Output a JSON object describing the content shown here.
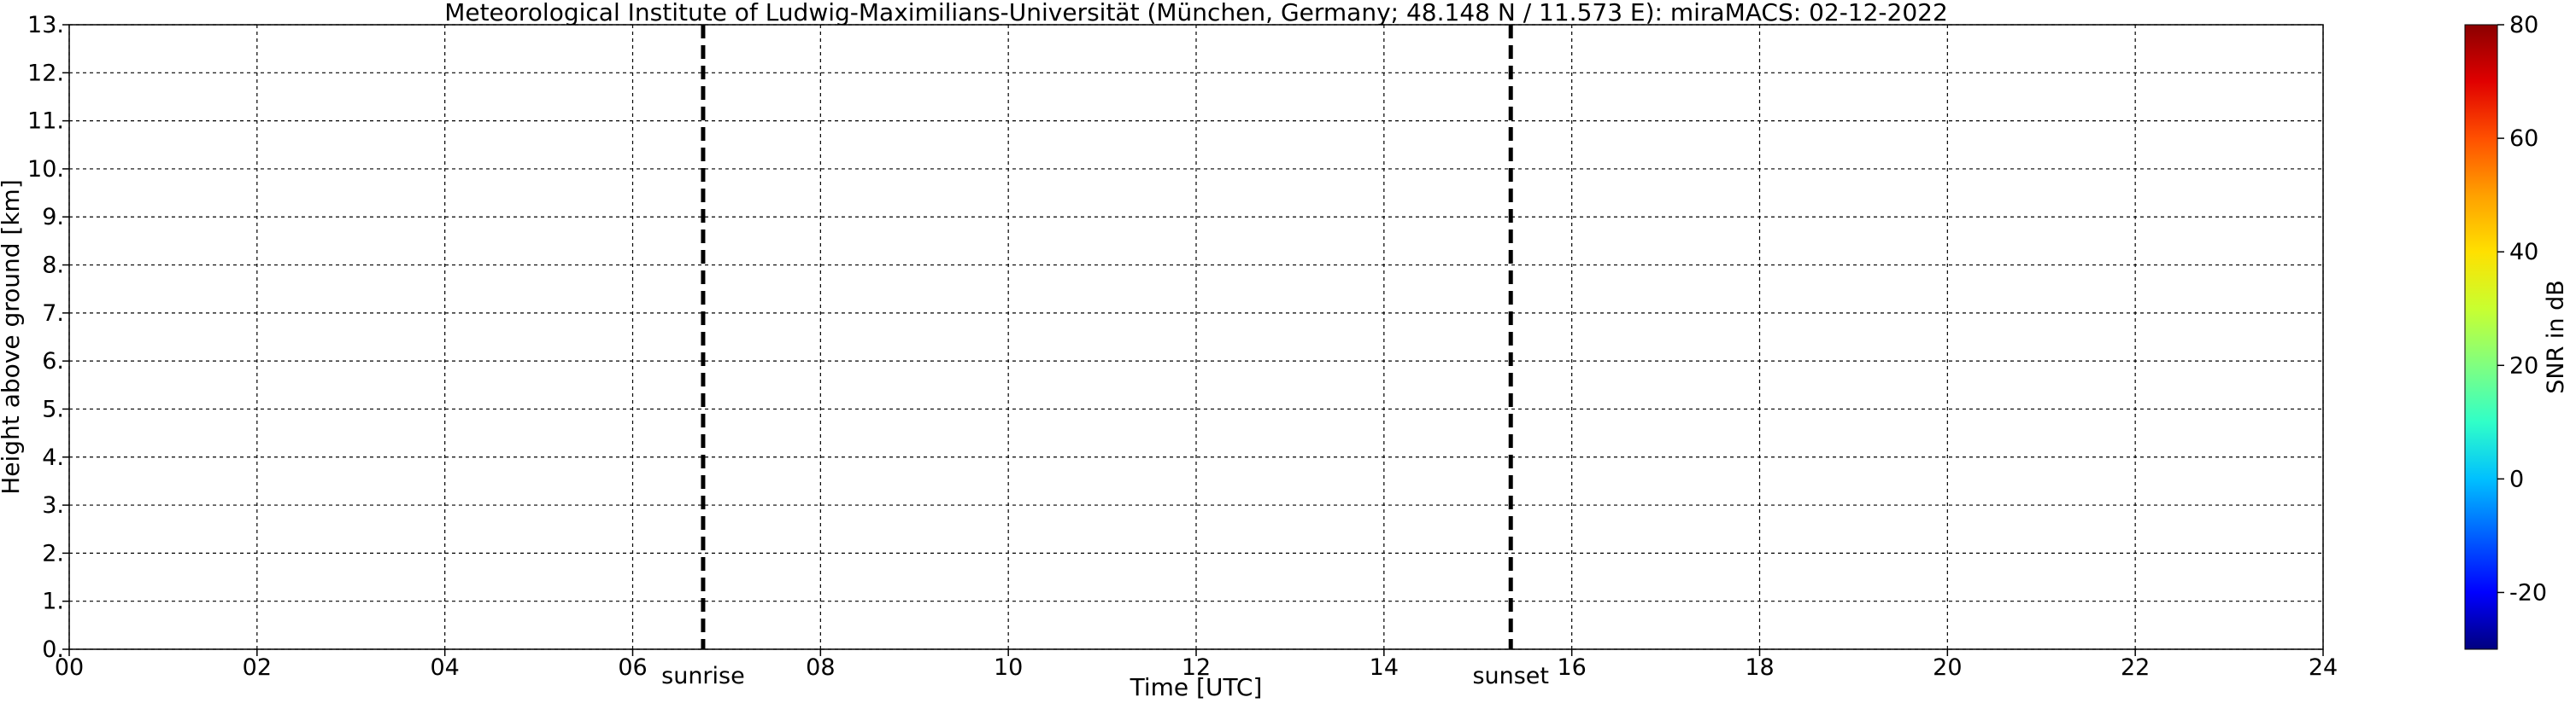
{
  "chart_data": {
    "type": "heatmap",
    "title": "Meteorological Institute of Ludwig-Maximilians-Universität (München, Germany; 48.148 N / 11.573 E):    miraMACS: 02-12-2022",
    "x_label": "Time [UTC]",
    "y_label": "Height above ground [km]",
    "xlim": [
      0,
      24
    ],
    "xticks": [
      {
        "value": 0,
        "label": "00"
      },
      {
        "value": 2,
        "label": "02"
      },
      {
        "value": 4,
        "label": "04"
      },
      {
        "value": 6,
        "label": "06"
      },
      {
        "value": 8,
        "label": "08"
      },
      10,
      12,
      14,
      16,
      18,
      20,
      22,
      24
    ],
    "ylim": [
      0,
      13
    ],
    "yticks": [
      {
        "value": 0,
        "label": "0."
      },
      {
        "value": 1,
        "label": "1."
      },
      {
        "value": 2,
        "label": "2."
      },
      {
        "value": 3,
        "label": "3."
      },
      {
        "value": 4,
        "label": "4."
      },
      {
        "value": 5,
        "label": "5."
      },
      {
        "value": 6,
        "label": "6."
      },
      {
        "value": 7,
        "label": "7."
      },
      {
        "value": 8,
        "label": "8."
      },
      {
        "value": 9,
        "label": "9."
      },
      {
        "value": 10,
        "label": "10."
      },
      {
        "value": 11,
        "label": "11."
      },
      {
        "value": 12,
        "label": "12."
      },
      {
        "value": 13,
        "label": "13."
      }
    ],
    "grid": true,
    "colorbar": {
      "label": "SNR in dB",
      "lim": [
        -30,
        80
      ],
      "ticks": [
        -20,
        0,
        20,
        40,
        60,
        80
      ],
      "colors": [
        "#00007f",
        "#0000ff",
        "#0060ff",
        "#00c0ff",
        "#30ffc8",
        "#80ff80",
        "#c8ff30",
        "#ffe000",
        "#ffa000",
        "#ff5000",
        "#e00000",
        "#8b0000"
      ]
    },
    "markers": [
      {
        "label": "sunrise",
        "x": 6.75
      },
      {
        "label": "sunset",
        "x": 15.35
      }
    ]
  }
}
